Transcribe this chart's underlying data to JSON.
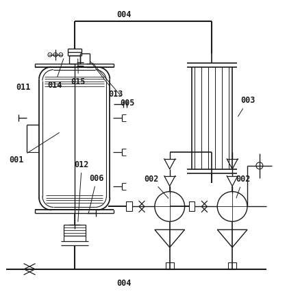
{
  "bg_color": "#ffffff",
  "line_color": "#1a1a1a",
  "label_color": "#1a1a1a",
  "font_size": 8,
  "label_font_size": 8.5,
  "figsize": [
    4.19,
    4.32
  ],
  "dpi": 100
}
